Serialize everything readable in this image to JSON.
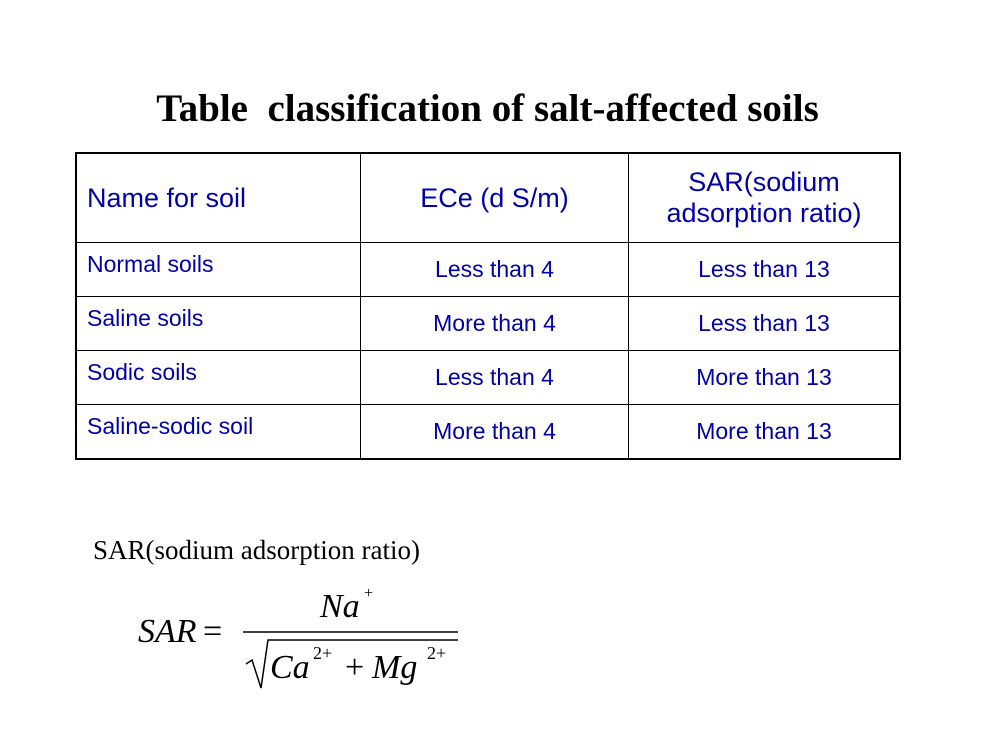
{
  "title": "Table  classification of salt-affected soils",
  "table": {
    "header": [
      "Name for soil",
      "ECe (d S/m)",
      "SAR(sodium adsorption ratio)"
    ],
    "rows": [
      [
        "Normal soils",
        "Less than 4",
        "Less than 13"
      ],
      [
        "Saline soils",
        "More than 4",
        "Less than 13"
      ],
      [
        "Sodic soils",
        "Less than 4",
        "More than 13"
      ],
      [
        "Saline-sodic soil",
        "More than 4",
        "More than 13"
      ]
    ]
  },
  "formula": {
    "caption": "SAR(sodium adsorption ratio)",
    "lhs": "SAR",
    "equals": "=",
    "numerator": {
      "base": "Na",
      "charge": "+"
    },
    "denominator": [
      {
        "base": "Ca",
        "charge": "2+"
      },
      {
        "operator": "+"
      },
      {
        "base": "Mg",
        "charge": "2+"
      }
    ]
  }
}
